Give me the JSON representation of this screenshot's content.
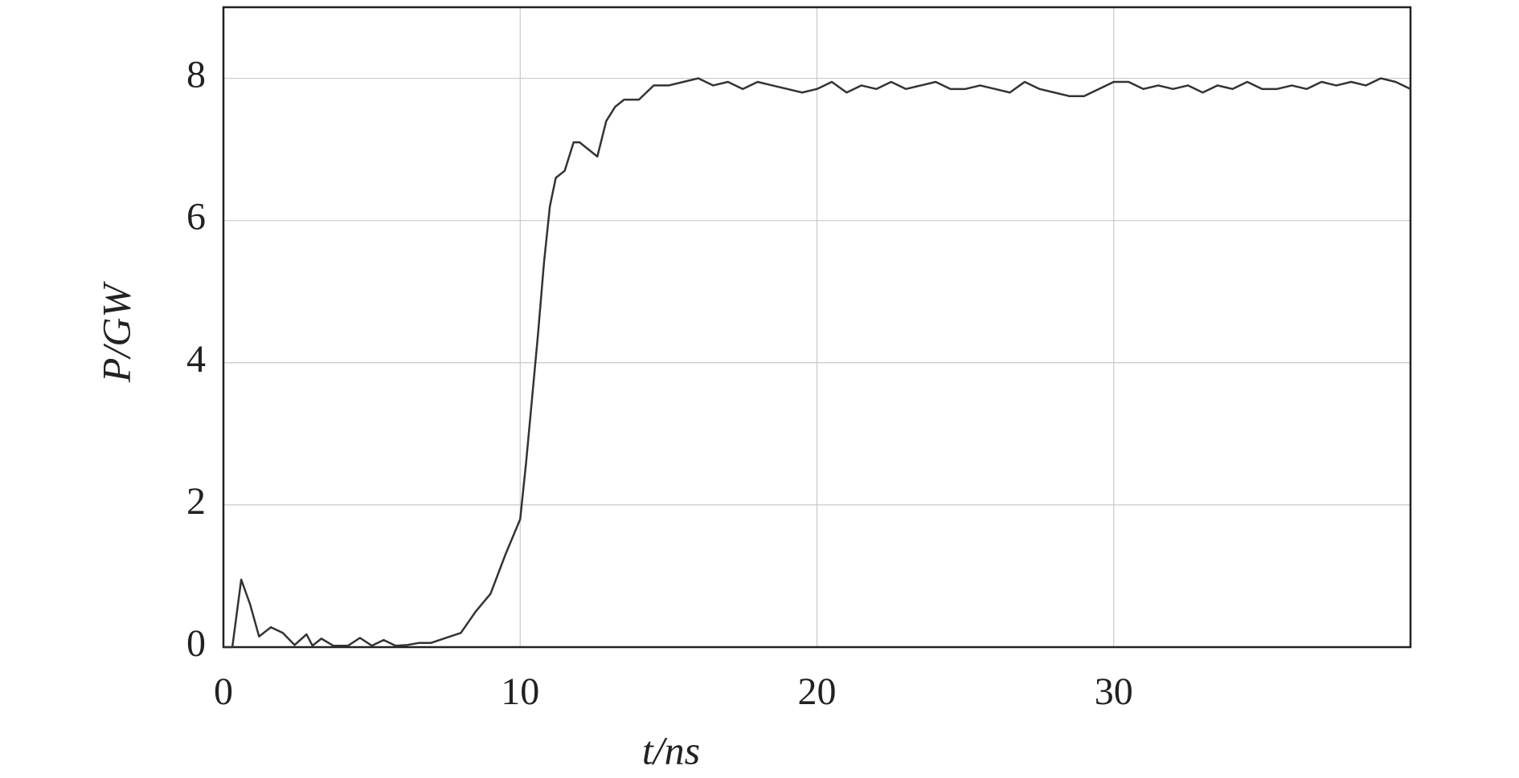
{
  "chart_data": {
    "type": "line",
    "x_label": "t/ns",
    "y_label": "P/GW",
    "xlim": [
      0,
      40
    ],
    "ylim": [
      0,
      9
    ],
    "xticks": [
      0,
      10,
      20,
      30
    ],
    "yticks": [
      0,
      2,
      4,
      6,
      8
    ],
    "grid": true,
    "x": [
      0,
      0.3,
      0.6,
      0.9,
      1.2,
      1.6,
      2.0,
      2.4,
      2.8,
      3.0,
      3.3,
      3.7,
      4.2,
      4.6,
      5.0,
      5.4,
      5.8,
      6.2,
      6.6,
      7.0,
      7.5,
      8.0,
      8.5,
      9.0,
      9.5,
      9.8,
      10.0,
      10.2,
      10.4,
      10.6,
      10.8,
      11.0,
      11.2,
      11.5,
      11.8,
      12.0,
      12.3,
      12.6,
      12.9,
      13.2,
      13.5,
      14.0,
      14.5,
      15.0,
      15.5,
      16.0,
      16.5,
      17.0,
      17.5,
      18.0,
      18.5,
      19.0,
      19.5,
      20.0,
      20.5,
      21.0,
      21.5,
      22.0,
      22.5,
      23.0,
      23.5,
      24.0,
      24.5,
      25.0,
      25.5,
      26.0,
      26.5,
      27.0,
      27.5,
      28.0,
      28.5,
      29.0,
      29.5,
      30.0,
      30.5,
      31.0,
      31.5,
      32.0,
      32.5,
      33.0,
      33.5,
      34.0,
      34.5,
      35.0,
      35.5,
      36.0,
      36.5,
      37.0,
      37.5,
      38.0,
      38.5,
      39.0,
      39.5,
      40.0
    ],
    "series": [
      {
        "color": "#333333",
        "values": [
          0,
          0,
          0.95,
          0.6,
          0.15,
          0.28,
          0.2,
          0.03,
          0.18,
          0.02,
          0.12,
          0.02,
          0.02,
          0.13,
          0.02,
          0.1,
          0.02,
          0.03,
          0.06,
          0.06,
          0.13,
          0.2,
          0.5,
          0.75,
          1.3,
          1.6,
          1.8,
          2.6,
          3.5,
          4.4,
          5.4,
          6.2,
          6.6,
          6.7,
          7.1,
          7.1,
          7.0,
          6.9,
          7.4,
          7.6,
          7.7,
          7.7,
          7.9,
          7.9,
          7.95,
          8.0,
          7.9,
          7.95,
          7.85,
          7.95,
          7.9,
          7.85,
          7.8,
          7.85,
          7.95,
          7.8,
          7.9,
          7.85,
          7.95,
          7.85,
          7.9,
          7.95,
          7.85,
          7.85,
          7.9,
          7.85,
          7.8,
          7.95,
          7.85,
          7.8,
          7.75,
          7.75,
          7.85,
          7.95,
          7.95,
          7.85,
          7.9,
          7.85,
          7.9,
          7.8,
          7.9,
          7.85,
          7.95,
          7.85,
          7.85,
          7.9,
          7.85,
          7.95,
          7.9,
          7.95,
          7.9,
          8.0,
          7.95,
          7.85
        ]
      }
    ]
  }
}
